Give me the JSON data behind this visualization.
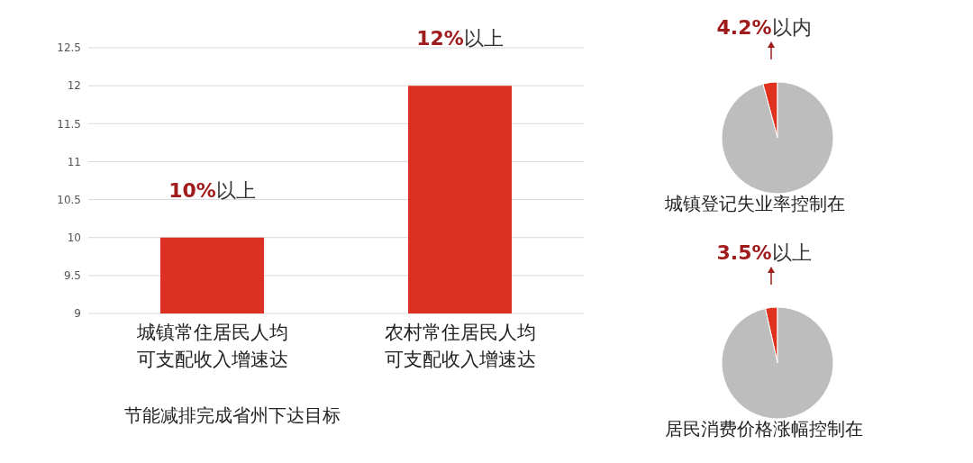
{
  "chart_data": [
    {
      "type": "bar",
      "categories": [
        "城镇常住居民人均可支配收入增速达",
        "农村常住居民人均可支配收入增速达"
      ],
      "values": [
        10,
        12
      ],
      "color": "#dc3022",
      "value_labels": [
        "10%以上",
        "12%以上"
      ],
      "ylim": [
        9,
        12.5
      ],
      "yticks": [
        9,
        9.5,
        10,
        10.5,
        11,
        11.5,
        12,
        12.5
      ],
      "grid": "y",
      "legend": false,
      "annotations": [
        "节能减排完成省州下达目标"
      ]
    },
    {
      "type": "pie",
      "title": "城镇登记失业率控制在",
      "categories": [
        null,
        null
      ],
      "values": [
        4.2,
        95.8
      ],
      "colors": [
        "#e0301e",
        "#bdbdbd"
      ],
      "value_labels": [
        "4.2%以内",
        null
      ],
      "legend": false
    },
    {
      "type": "pie",
      "title": "居民消费价格涨幅控制在",
      "categories": [
        null,
        null
      ],
      "values": [
        3.5,
        96.5
      ],
      "colors": [
        "#e0301e",
        "#bdbdbd"
      ],
      "value_labels": [
        "3.5%以上",
        null
      ],
      "legend": false
    }
  ]
}
